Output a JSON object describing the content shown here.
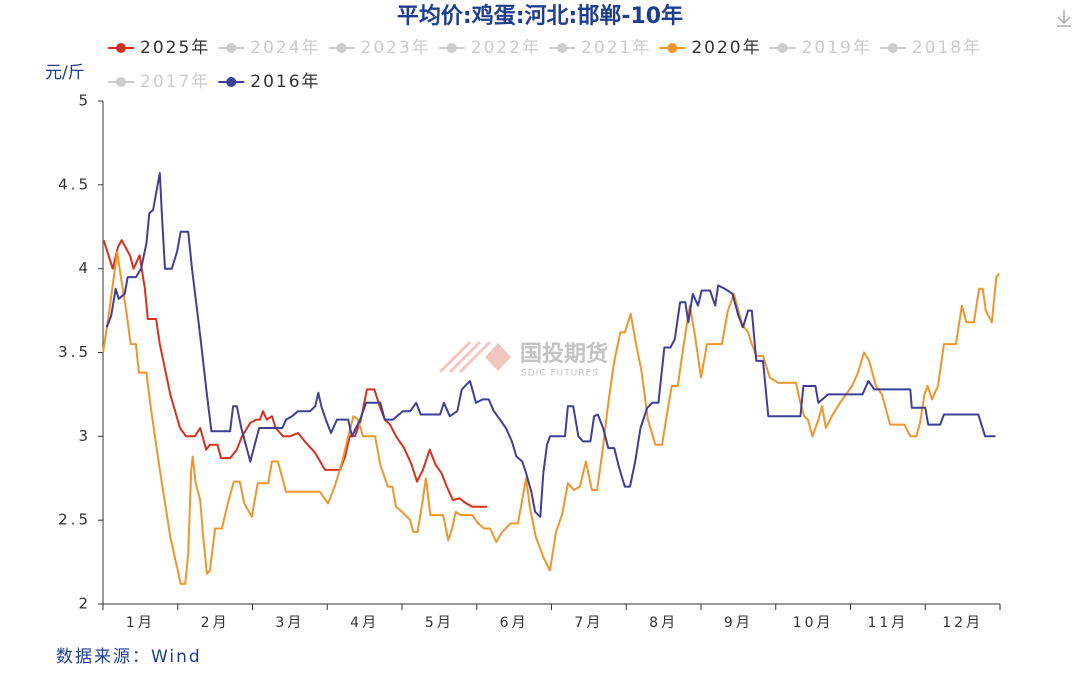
{
  "chart_data": {
    "type": "line",
    "title": "平均价:鸡蛋:河北:邯郸-10年",
    "y_label": "元/斤",
    "source": "数据来源：Wind",
    "watermark": "国投期货",
    "watermark_sub": "SDIC FUTURES",
    "categories": [
      "1月",
      "2月",
      "3月",
      "4月",
      "5月",
      "6月",
      "7月",
      "8月",
      "9月",
      "10月",
      "11月",
      "12月"
    ],
    "xlim": [
      0,
      12
    ],
    "ylim": [
      2,
      5
    ],
    "yticks": [
      2,
      2.5,
      3,
      3.5,
      4,
      4.5,
      5
    ],
    "grid": false,
    "legend": "top",
    "series": [
      {
        "name": "2025年",
        "color": "#d7301f",
        "x": [
          0.01,
          0.13,
          0.2,
          0.25,
          0.36,
          0.41,
          0.49,
          0.56,
          0.6,
          0.71,
          0.76,
          0.9,
          1.03,
          1.11,
          1.23,
          1.3,
          1.38,
          1.43,
          1.53,
          1.58,
          1.7,
          1.79,
          1.86,
          1.97,
          2.05,
          2.1,
          2.14,
          2.19,
          2.26,
          2.31,
          2.41,
          2.5,
          2.61,
          2.7,
          2.84,
          2.97,
          3.17,
          3.24,
          3.3,
          3.37,
          3.45,
          3.53,
          3.63,
          3.71,
          3.77,
          3.84,
          3.92,
          4.03,
          4.13,
          4.2,
          4.28,
          4.37,
          4.45,
          4.53,
          4.6,
          4.68,
          4.77,
          4.86,
          4.94,
          5.14
        ],
        "values": [
          4.17,
          4.0,
          4.13,
          4.17,
          4.08,
          4.0,
          4.08,
          3.88,
          3.7,
          3.7,
          3.55,
          3.25,
          3.05,
          3.0,
          3.0,
          3.05,
          2.92,
          2.95,
          2.95,
          2.87,
          2.87,
          2.92,
          3.0,
          3.08,
          3.1,
          3.1,
          3.15,
          3.1,
          3.12,
          3.05,
          3.0,
          3.0,
          3.02,
          2.97,
          2.9,
          2.8,
          2.8,
          2.88,
          3.0,
          3.0,
          3.1,
          3.28,
          3.28,
          3.17,
          3.1,
          3.07,
          3.0,
          2.93,
          2.83,
          2.73,
          2.8,
          2.92,
          2.83,
          2.78,
          2.7,
          2.62,
          2.63,
          2.6,
          2.58,
          2.58
        ]
      },
      {
        "name": "2024年",
        "color": "#cccccc",
        "visible": false
      },
      {
        "name": "2023年",
        "color": "#cccccc",
        "visible": false
      },
      {
        "name": "2022年",
        "color": "#cccccc",
        "visible": false
      },
      {
        "name": "2021年",
        "color": "#cccccc",
        "visible": false
      },
      {
        "name": "2020年",
        "color": "#f0952b",
        "x": [
          0,
          0.07,
          0.13,
          0.19,
          0.24,
          0.31,
          0.37,
          0.44,
          0.48,
          0.58,
          0.63,
          0.76,
          0.9,
          1.04,
          1.1,
          1.14,
          1.18,
          1.2,
          1.24,
          1.3,
          1.34,
          1.39,
          1.43,
          1.5,
          1.59,
          1.67,
          1.75,
          1.83,
          1.89,
          1.99,
          2.07,
          2.21,
          2.26,
          2.34,
          2.45,
          2.64,
          2.9,
          3.01,
          3.1,
          3.2,
          3.28,
          3.35,
          3.41,
          3.48,
          3.64,
          3.71,
          3.81,
          3.87,
          3.92,
          4.0,
          4.11,
          4.15,
          4.21,
          4.27,
          4.32,
          4.38,
          4.55,
          4.62,
          4.67,
          4.72,
          4.78,
          4.94,
          5.02,
          5.1,
          5.18,
          5.26,
          5.34,
          5.45,
          5.55,
          5.66,
          5.71,
          5.79,
          5.89,
          5.98,
          6.06,
          6.14,
          6.22,
          6.3,
          6.38,
          6.46,
          6.54,
          6.61,
          6.68,
          6.76,
          6.84,
          6.92,
          6.98,
          7.06,
          7.13,
          7.2,
          7.29,
          7.39,
          7.48,
          7.55,
          7.61,
          7.69,
          7.77,
          7.85,
          7.92,
          8.0,
          8.08,
          8.28,
          8.36,
          8.44,
          8.5,
          8.55,
          8.63,
          8.68,
          8.74,
          8.83,
          8.92,
          9.03,
          9.27,
          9.33,
          9.38,
          9.43,
          9.49,
          9.57,
          9.62,
          9.67,
          9.75,
          9.86,
          9.94,
          10.02,
          10.1,
          10.18,
          10.25,
          10.34,
          10.42,
          10.53,
          10.72,
          10.8,
          10.88,
          10.93,
          10.99,
          11.03,
          11.09,
          11.17,
          11.25,
          11.41,
          11.49,
          11.55,
          11.65,
          11.72,
          11.77,
          11.81,
          11.89,
          11.95,
          11.99
        ],
        "values": [
          3.5,
          3.7,
          3.9,
          4.1,
          3.95,
          3.75,
          3.55,
          3.55,
          3.38,
          3.38,
          3.2,
          2.8,
          2.4,
          2.12,
          2.12,
          2.3,
          2.8,
          2.88,
          2.72,
          2.62,
          2.4,
          2.18,
          2.2,
          2.45,
          2.45,
          2.6,
          2.73,
          2.73,
          2.6,
          2.52,
          2.72,
          2.72,
          2.85,
          2.85,
          2.67,
          2.67,
          2.67,
          2.6,
          2.7,
          2.85,
          3.0,
          3.12,
          3.1,
          3.0,
          3.0,
          2.83,
          2.7,
          2.7,
          2.58,
          2.55,
          2.5,
          2.43,
          2.43,
          2.6,
          2.75,
          2.53,
          2.53,
          2.38,
          2.45,
          2.55,
          2.53,
          2.53,
          2.48,
          2.45,
          2.45,
          2.37,
          2.43,
          2.48,
          2.48,
          2.75,
          2.58,
          2.4,
          2.28,
          2.2,
          2.43,
          2.53,
          2.72,
          2.68,
          2.7,
          2.85,
          2.68,
          2.68,
          2.9,
          3.2,
          3.45,
          3.62,
          3.62,
          3.73,
          3.55,
          3.4,
          3.1,
          2.95,
          2.95,
          3.15,
          3.3,
          3.3,
          3.55,
          3.78,
          3.6,
          3.35,
          3.55,
          3.55,
          3.75,
          3.85,
          3.75,
          3.67,
          3.62,
          3.55,
          3.48,
          3.48,
          3.35,
          3.32,
          3.32,
          3.2,
          3.12,
          3.1,
          3.0,
          3.1,
          3.18,
          3.05,
          3.12,
          3.2,
          3.25,
          3.3,
          3.38,
          3.5,
          3.45,
          3.3,
          3.25,
          3.07,
          3.07,
          3.0,
          3.0,
          3.08,
          3.25,
          3.3,
          3.22,
          3.3,
          3.55,
          3.55,
          3.78,
          3.68,
          3.68,
          3.88,
          3.88,
          3.75,
          3.68,
          3.95,
          3.97
        ]
      },
      {
        "name": "2019年",
        "color": "#cccccc",
        "visible": false
      },
      {
        "name": "2018年",
        "color": "#cccccc",
        "visible": false
      },
      {
        "name": "2017年",
        "color": "#cccccc",
        "visible": false
      },
      {
        "name": "2016年",
        "color": "#3f3f96",
        "x": [
          0.05,
          0.11,
          0.17,
          0.21,
          0.29,
          0.33,
          0.44,
          0.51,
          0.58,
          0.62,
          0.67,
          0.71,
          0.76,
          0.79,
          0.83,
          0.92,
          0.99,
          1.04,
          1.14,
          1.19,
          1.3,
          1.39,
          1.45,
          1.59,
          1.7,
          1.74,
          1.79,
          1.85,
          1.91,
          1.97,
          2.03,
          2.09,
          2.23,
          2.4,
          2.45,
          2.53,
          2.61,
          2.77,
          2.84,
          2.88,
          2.92,
          2.98,
          3.05,
          3.13,
          3.28,
          3.33,
          3.44,
          3.52,
          3.71,
          3.77,
          3.88,
          4.01,
          4.11,
          4.19,
          4.25,
          4.51,
          4.56,
          4.64,
          4.74,
          4.8,
          4.91,
          4.99,
          5.08,
          5.16,
          5.23,
          5.31,
          5.39,
          5.47,
          5.53,
          5.61,
          5.66,
          5.73,
          5.78,
          5.85,
          5.89,
          5.94,
          5.98,
          6.18,
          6.22,
          6.29,
          6.36,
          6.42,
          6.52,
          6.57,
          6.62,
          6.69,
          6.76,
          6.84,
          6.9,
          6.98,
          7.05,
          7.12,
          7.19,
          7.28,
          7.35,
          7.43,
          7.51,
          7.59,
          7.65,
          7.72,
          7.79,
          7.83,
          7.89,
          7.96,
          8.01,
          8.12,
          8.19,
          8.23,
          8.32,
          8.42,
          8.5,
          8.56,
          8.63,
          8.68,
          8.74,
          8.83,
          8.9,
          9.26,
          9.33,
          9.37,
          9.53,
          9.57,
          9.7,
          10.16,
          10.24,
          10.32,
          10.8,
          10.82,
          11.0,
          11.04,
          11.2,
          11.25,
          11.71,
          11.8,
          11.94
        ],
        "values": [
          3.65,
          3.72,
          3.88,
          3.82,
          3.85,
          3.95,
          3.95,
          4.0,
          4.15,
          4.33,
          4.35,
          4.45,
          4.57,
          4.3,
          4.0,
          4.0,
          4.1,
          4.22,
          4.22,
          4.0,
          3.6,
          3.25,
          3.03,
          3.03,
          3.03,
          3.18,
          3.18,
          3.05,
          2.95,
          2.85,
          2.95,
          3.05,
          3.05,
          3.05,
          3.1,
          3.12,
          3.15,
          3.15,
          3.18,
          3.26,
          3.18,
          3.1,
          3.02,
          3.1,
          3.1,
          3.0,
          3.1,
          3.2,
          3.2,
          3.1,
          3.1,
          3.15,
          3.15,
          3.2,
          3.13,
          3.13,
          3.2,
          3.12,
          3.15,
          3.28,
          3.33,
          3.2,
          3.22,
          3.22,
          3.15,
          3.1,
          3.05,
          2.97,
          2.88,
          2.85,
          2.78,
          2.67,
          2.55,
          2.52,
          2.78,
          2.95,
          3.0,
          3.0,
          3.18,
          3.18,
          3.0,
          2.97,
          2.97,
          3.12,
          3.13,
          3.05,
          2.93,
          2.93,
          2.82,
          2.7,
          2.7,
          2.85,
          3.05,
          3.17,
          3.2,
          3.2,
          3.53,
          3.53,
          3.58,
          3.8,
          3.8,
          3.68,
          3.85,
          3.78,
          3.87,
          3.87,
          3.78,
          3.9,
          3.88,
          3.85,
          3.72,
          3.65,
          3.75,
          3.75,
          3.45,
          3.45,
          3.12,
          3.12,
          3.12,
          3.3,
          3.3,
          3.2,
          3.25,
          3.25,
          3.33,
          3.28,
          3.28,
          3.17,
          3.17,
          3.07,
          3.07,
          3.13,
          3.13,
          3.0,
          3.0
        ]
      }
    ]
  }
}
